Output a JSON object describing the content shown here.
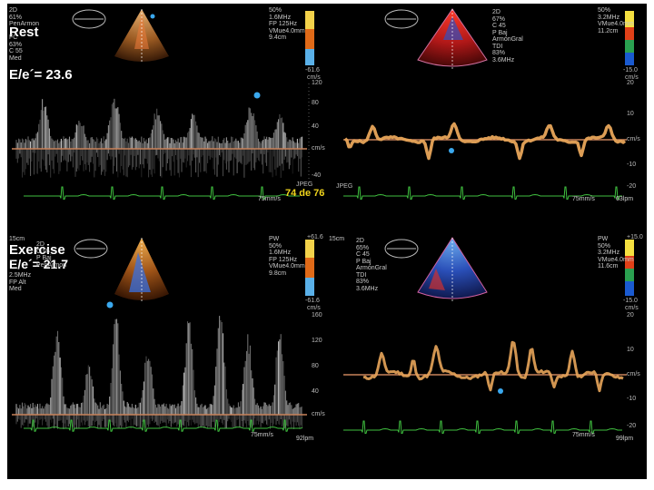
{
  "panels": [
    {
      "id": "rest-pw",
      "label": "Rest",
      "ratio_text": "E/e´= 23.6",
      "info_left": [
        "2D",
        "61%",
        "PenArmon",
        "FC",
        "63%",
        "C 55",
        "Med"
      ],
      "info_right": [
        "50%",
        "1.6MHz",
        "FP 125Hz",
        "VMue4.0mm",
        "9.4cm"
      ],
      "scale_top": "",
      "scale_bottom": "-61.6",
      "scale_unit": "cm/s",
      "axis_ticks": [
        "120",
        "80",
        "40",
        "cm/s",
        "-40"
      ],
      "sweep": "75mm/s",
      "frame_counter": "74 de 76",
      "jpeg": "JPEG"
    },
    {
      "id": "rest-tdi",
      "label": "",
      "ratio_text": "",
      "info_left": [
        "2D",
        "67%",
        "C 45",
        "P Baj",
        "ArmónGral",
        "TDI",
        "83%",
        "3.6MHz"
      ],
      "info_right": [
        "50%",
        "3.2MHz",
        "VMue4.0mm",
        "11.2cm"
      ],
      "scale_top": "",
      "scale_bottom": "-15.0",
      "scale_unit": "cm/s",
      "axis_ticks": [
        "20",
        "10",
        "cm/s",
        "-10",
        "-20"
      ],
      "sweep": "75mm/s",
      "bpm": "63lpm",
      "jpeg": "JPEG"
    },
    {
      "id": "exercise-pw",
      "label": "Exercise",
      "ratio_text": "E/e´= 21.7",
      "info_left": [
        "15cm",
        "2D",
        "C 55",
        "P Baj",
        "PenArmon",
        "2.5MHz",
        "FP Alt",
        "Med"
      ],
      "info_right": [
        "PW",
        "50%",
        "1.6MHz",
        "FP 125Hz",
        "VMue4.0mm",
        "9.8cm"
      ],
      "scale_top": "+61.6",
      "scale_bottom": "-61.6",
      "scale_unit": "cm/s",
      "axis_ticks": [
        "160",
        "120",
        "80",
        "40",
        "cm/s"
      ],
      "sweep": "75mm/s",
      "bpm": "92lpm"
    },
    {
      "id": "exercise-tdi",
      "label": "",
      "ratio_text": "",
      "info_left": [
        "15cm",
        "2D",
        "65%",
        "C 45",
        "P Baj",
        "ArmónGral",
        "TDI",
        "83%",
        "3.6MHz"
      ],
      "info_right": [
        "PW",
        "50%",
        "3.2MHz",
        "VMue4.0mm",
        "11.6cm"
      ],
      "scale_top": "+15.0",
      "scale_bottom": "-15.0",
      "scale_unit": "cm/s",
      "axis_ticks": [
        "20",
        "10",
        "cm/s",
        "-10",
        "-20"
      ],
      "sweep": "75mm/s",
      "bpm": "99lpm"
    }
  ],
  "colors": {
    "background": "#000000",
    "baseline": "#c8825a",
    "ecg": "#3fbf3f",
    "marker": "#3aa8ee",
    "tdi_trace": "#e8a55a",
    "counter": "#f1d51c"
  }
}
